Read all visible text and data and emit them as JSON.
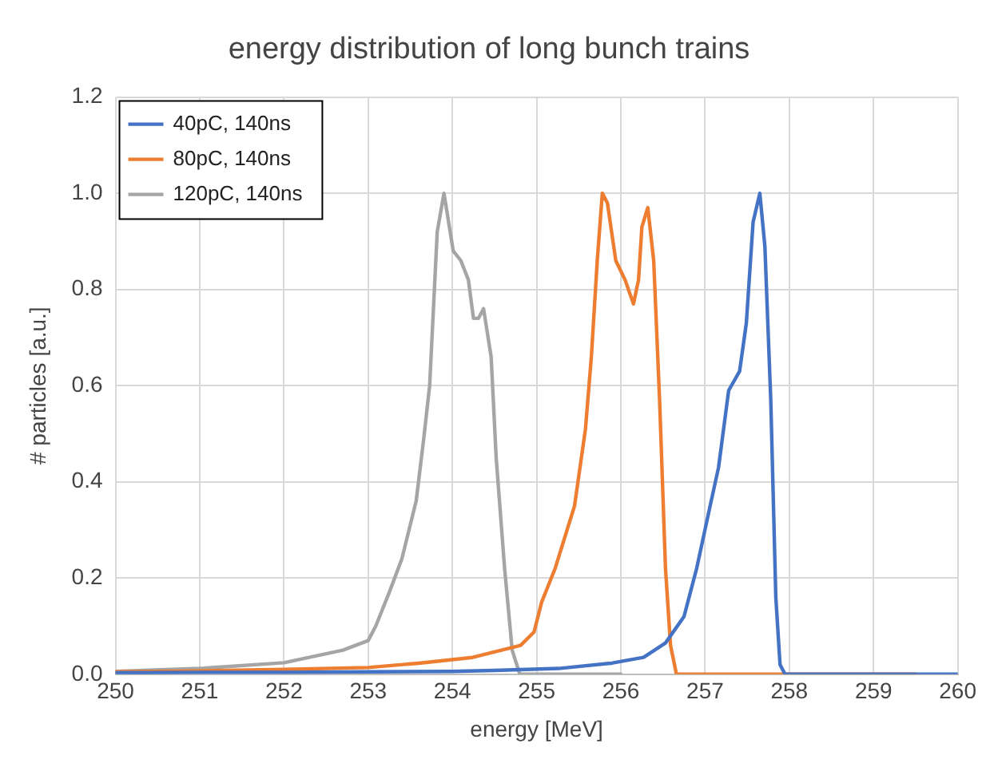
{
  "chart_data": {
    "type": "line",
    "title": "energy distribution of long bunch trains",
    "xlabel": "energy [MeV]",
    "ylabel": "# particles [a.u.]",
    "xlim": [
      250,
      260
    ],
    "xticks": [
      250,
      251,
      252,
      253,
      254,
      255,
      256,
      257,
      258,
      259,
      260
    ],
    "ylim": [
      0,
      1.2
    ],
    "yticks": [
      {
        "value": 0,
        "label": "0.0"
      },
      {
        "value": 0.2,
        "label": "0.2"
      },
      {
        "value": 0.4,
        "label": "0.4"
      },
      {
        "value": 0.6,
        "label": "0.6"
      },
      {
        "value": 0.8,
        "label": "0.8"
      },
      {
        "value": 1,
        "label": "1.0"
      },
      {
        "value": 1.2,
        "label": "1.2"
      }
    ],
    "grid": true,
    "legend": "top left",
    "marker": "none",
    "line_style": "solid",
    "series": [
      {
        "name": "40pC, 140ns",
        "color": "#4472c4",
        "x": [
          250,
          251,
          252,
          253,
          254,
          254.5,
          255.26,
          255.89,
          256.27,
          256.53,
          256.75,
          256.9,
          257.06,
          257.16,
          257.28,
          257.41,
          257.49,
          257.57,
          257.65,
          257.71,
          257.78,
          257.84,
          257.89,
          257.95,
          259,
          260
        ],
        "values": [
          0.003,
          0.004,
          0.004,
          0.005,
          0.006,
          0.008,
          0.012,
          0.023,
          0.035,
          0.065,
          0.12,
          0.22,
          0.35,
          0.43,
          0.59,
          0.63,
          0.73,
          0.94,
          1.0,
          0.89,
          0.57,
          0.16,
          0.02,
          0,
          0,
          0
        ]
      },
      {
        "name": "80pC, 140ns",
        "color": "#ed7d31",
        "x": [
          250,
          251,
          252,
          253,
          253.6,
          254.24,
          254.81,
          254.97,
          255.06,
          255.22,
          255.45,
          255.58,
          255.65,
          255.72,
          255.78,
          255.84,
          255.94,
          256.05,
          256.15,
          256.21,
          256.25,
          256.32,
          256.39,
          256.46,
          256.53,
          256.59,
          256.66,
          258,
          259.5
        ],
        "values": [
          0.005,
          0.007,
          0.01,
          0.014,
          0.023,
          0.035,
          0.06,
          0.088,
          0.15,
          0.22,
          0.35,
          0.51,
          0.66,
          0.86,
          1.0,
          0.98,
          0.86,
          0.82,
          0.77,
          0.82,
          0.93,
          0.97,
          0.86,
          0.57,
          0.22,
          0.06,
          0,
          0,
          0
        ]
      },
      {
        "name": "120pC, 140ns",
        "color": "#a5a5a5",
        "x": [
          250,
          251,
          252,
          252.7,
          253,
          253.09,
          253.25,
          253.4,
          253.57,
          253.66,
          253.73,
          253.82,
          253.9,
          254.01,
          254.1,
          254.19,
          254.25,
          254.31,
          254.37,
          254.46,
          254.52,
          254.62,
          254.71,
          254.8,
          256
        ],
        "values": [
          0.006,
          0.012,
          0.024,
          0.05,
          0.07,
          0.1,
          0.17,
          0.24,
          0.36,
          0.49,
          0.6,
          0.92,
          1.0,
          0.88,
          0.86,
          0.82,
          0.74,
          0.74,
          0.76,
          0.66,
          0.45,
          0.22,
          0.05,
          0,
          0
        ]
      }
    ]
  }
}
